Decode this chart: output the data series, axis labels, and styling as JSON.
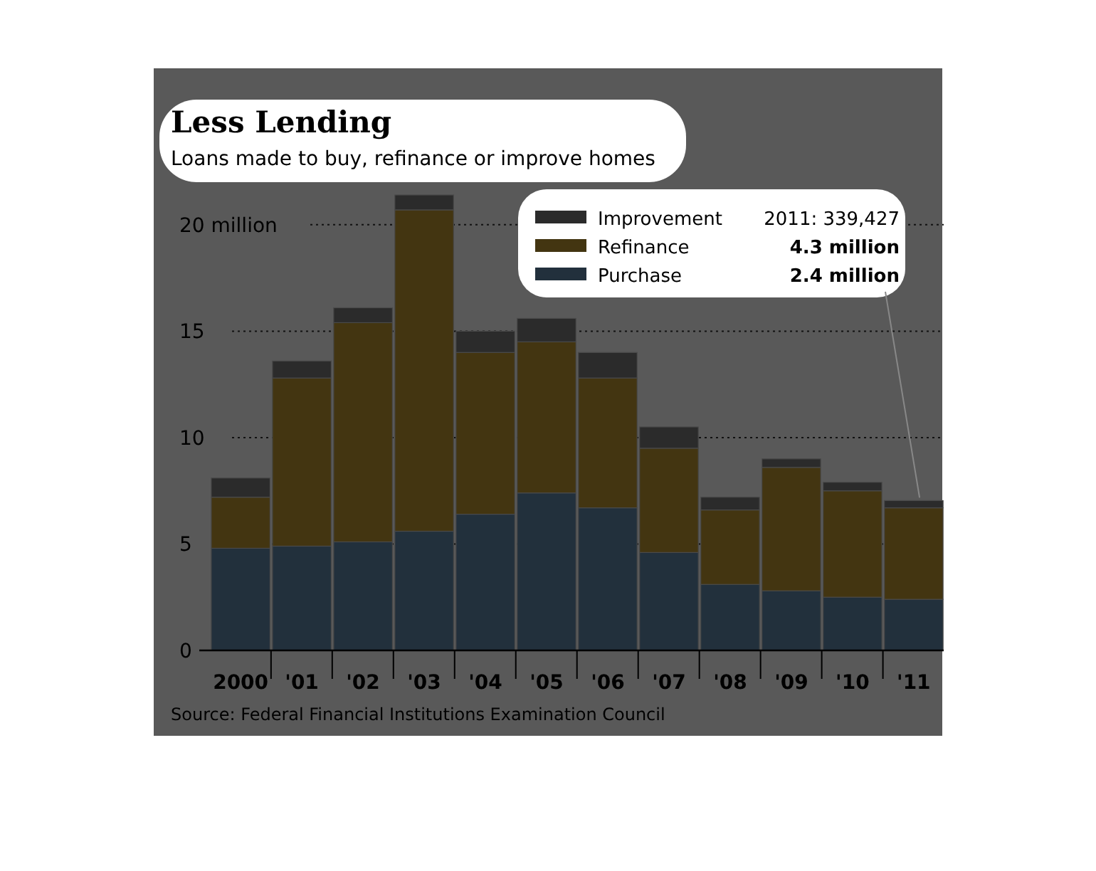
{
  "chart_data": {
    "type": "bar",
    "title": "Less Lending",
    "subtitle": "Loans made to buy, refinance or improve homes",
    "categories": [
      "2000",
      "'01",
      "'02",
      "'03",
      "'04",
      "'05",
      "'06",
      "'07",
      "'08",
      "'09",
      "'10",
      "'11"
    ],
    "stacked": true,
    "series": [
      {
        "name": "Purchase",
        "color": "#22303c",
        "values": [
          4.8,
          4.9,
          5.1,
          5.6,
          6.4,
          7.4,
          6.7,
          4.6,
          3.1,
          2.8,
          2.5,
          2.4
        ]
      },
      {
        "name": "Refinance",
        "color": "#433511",
        "values": [
          2.4,
          7.9,
          10.3,
          15.1,
          7.6,
          7.1,
          6.1,
          4.9,
          3.5,
          5.8,
          5.0,
          4.3
        ]
      },
      {
        "name": "Improvement",
        "color": "#2b2b2b",
        "values": [
          0.9,
          0.8,
          0.7,
          0.7,
          1.0,
          1.1,
          1.2,
          1.0,
          0.6,
          0.4,
          0.4,
          0.34
        ]
      }
    ],
    "ylim": [
      0,
      21.5
    ],
    "yticks": [
      0,
      5,
      10,
      15,
      {
        "value": 20,
        "label": "20 million"
      }
    ],
    "grid": "y",
    "legend": "top right",
    "annotations": [
      "2011: 339,427",
      "4.3 million",
      {
        "text": "2.4 million",
        "x": "'11",
        "y": 7.04
      },
      "Source: Federal Financial Institutions Examination Council"
    ]
  }
}
